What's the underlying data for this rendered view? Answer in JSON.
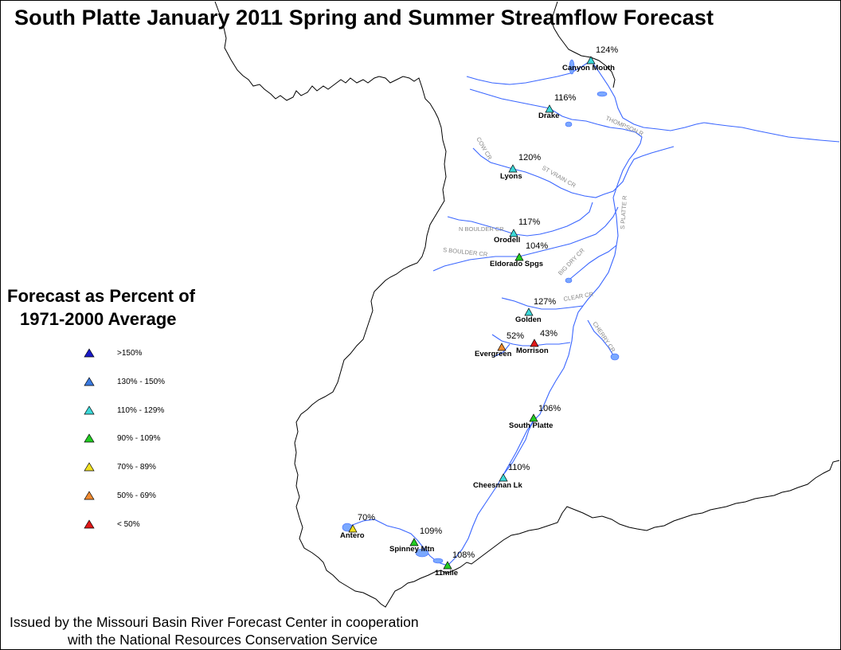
{
  "title": "South Platte January 2011 Spring and Summer Streamflow Forecast",
  "legend": {
    "title_line1": "Forecast as Percent of",
    "title_line2": "1971-2000 Average",
    "items": [
      {
        "label": ">150%",
        "color": "#1a1ac8"
      },
      {
        "label": "130% - 150%",
        "color": "#3a7ae0"
      },
      {
        "label": "110% - 129%",
        "color": "#3cd8d8"
      },
      {
        "label": "90% - 109%",
        "color": "#22cc22"
      },
      {
        "label": "70% - 89%",
        "color": "#f0e020"
      },
      {
        "label": "50% - 69%",
        "color": "#f08a30"
      },
      {
        "label": "< 50%",
        "color": "#e01818"
      }
    ]
  },
  "stations": [
    {
      "name": "Canyon Mouth",
      "pct": "124%",
      "category": "110% - 129%"
    },
    {
      "name": "Drake",
      "pct": "116%",
      "category": "110% - 129%"
    },
    {
      "name": "Lyons",
      "pct": "120%",
      "category": "110% - 129%"
    },
    {
      "name": "Orodell",
      "pct": "117%",
      "category": "110% - 129%"
    },
    {
      "name": "Eldorado Spgs",
      "pct": "104%",
      "category": "90% - 109%"
    },
    {
      "name": "Golden",
      "pct": "127%",
      "category": "110% - 129%"
    },
    {
      "name": "Evergreen",
      "pct": "52%",
      "category": "50% - 69%"
    },
    {
      "name": "Morrison",
      "pct": "43%",
      "category": "< 50%"
    },
    {
      "name": "South Platte",
      "pct": "106%",
      "category": "90% - 109%"
    },
    {
      "name": "Cheesman Lk",
      "pct": "110%",
      "category": "110% - 129%"
    },
    {
      "name": "Antero",
      "pct": "70%",
      "category": "70% - 89%"
    },
    {
      "name": "Spinney Mtn",
      "pct": "109%",
      "category": "90% - 109%"
    },
    {
      "name": "11mile",
      "pct": "108%",
      "category": "90% - 109%"
    }
  ],
  "river_labels": [
    "THOMPSON R",
    "COW CR",
    "ST VRAIN CR",
    "N BOULDER CR",
    "S BOULDER CR",
    "S PLATTE R",
    "BIG DRY CR",
    "CLEAR CR",
    "CHERRY CR"
  ],
  "footer": {
    "line1": "Issued by the Missouri Basin River Forecast Center in cooperation",
    "line2": "with the National Resources Conservation Service"
  },
  "colors": {
    "river": "#3a66ff",
    "lake": "#7aa8ff",
    "boundary": "#000000",
    "river_label": "#888888"
  }
}
